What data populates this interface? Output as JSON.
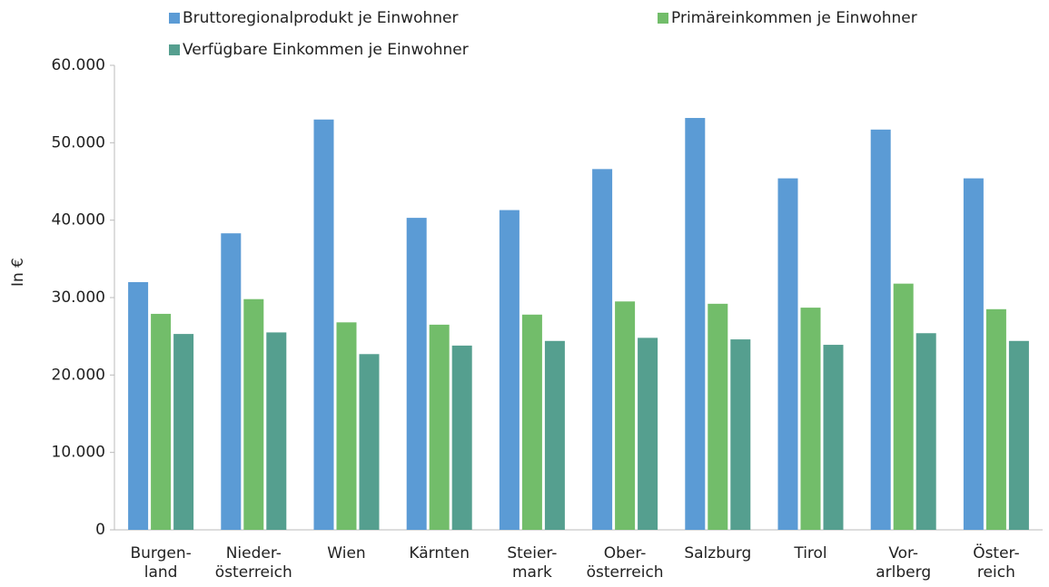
{
  "chart_data": {
    "type": "bar",
    "ylabel": "In €",
    "categories": [
      "Burgen-\nland",
      "Nieder-\nösterreich",
      "Wien",
      "Kärnten",
      "Steier-\nmark",
      "Ober-\nösterreich",
      "Salzburg",
      "Tirol",
      "Vor-\narlberg",
      "Öster-\nreich"
    ],
    "series": [
      {
        "name": "Bruttoregionalprodukt je Einwohner",
        "color": "#5b9bd5",
        "values": [
          32000,
          38300,
          53000,
          40300,
          41300,
          46600,
          53200,
          45400,
          51700,
          45400
        ]
      },
      {
        "name": "Primäreinkommen je Einwohner",
        "color": "#72bd6a",
        "values": [
          27900,
          29800,
          26800,
          26500,
          27800,
          29500,
          29200,
          28700,
          31800,
          28500
        ]
      },
      {
        "name": "Verfügbare Einkommen je Einwohner",
        "color": "#559f8f",
        "values": [
          25300,
          25500,
          22700,
          23800,
          24400,
          24800,
          24600,
          23900,
          25400,
          24400
        ]
      }
    ],
    "ylim": [
      0,
      60000
    ],
    "yticks": [
      0,
      {
        "value": 10000,
        "label": "10.000"
      },
      {
        "value": 20000,
        "label": "20.000"
      },
      {
        "value": 30000,
        "label": "30.000"
      },
      {
        "value": 40000,
        "label": "40.000"
      },
      {
        "value": 50000,
        "label": "50.000"
      },
      {
        "value": 60000,
        "label": "60.000"
      }
    ],
    "legend": "top"
  }
}
